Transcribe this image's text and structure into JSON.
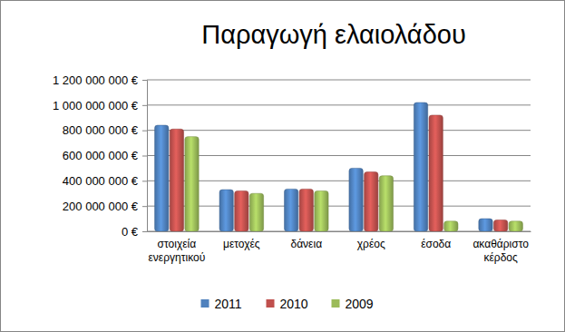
{
  "chart_data": {
    "type": "bar",
    "title": "Παραγωγή ελαιολάδου",
    "categories": [
      "στοιχεία ενεργητικού",
      "μετοχές",
      "δάνεια",
      "χρέος",
      "έσοδα",
      "ακαθάριστο κέρδος"
    ],
    "series": [
      {
        "name": "2011",
        "color": "#4f81bd",
        "values": [
          840000000,
          330000000,
          335000000,
          500000000,
          1020000000,
          100000000
        ]
      },
      {
        "name": "2010",
        "color": "#c0504d",
        "values": [
          810000000,
          320000000,
          335000000,
          470000000,
          920000000,
          90000000
        ]
      },
      {
        "name": "2009",
        "color": "#9bbb59",
        "values": [
          750000000,
          300000000,
          320000000,
          440000000,
          80000000,
          80000000
        ]
      }
    ],
    "ylim": [
      0,
      1200000000
    ],
    "yticks": [
      {
        "value": 0,
        "label": "0 €"
      },
      {
        "value": 200000000,
        "label": "200 000 000 €"
      },
      {
        "value": 400000000,
        "label": "400 000 000 €"
      },
      {
        "value": 600000000,
        "label": "600 000 000 €"
      },
      {
        "value": 800000000,
        "label": "800 000 000 €"
      },
      {
        "value": 1000000000,
        "label": "1 000 000 000 €"
      },
      {
        "value": 1200000000,
        "label": "1 200 000 000 €"
      }
    ],
    "grid": true,
    "legend": "bottom"
  }
}
